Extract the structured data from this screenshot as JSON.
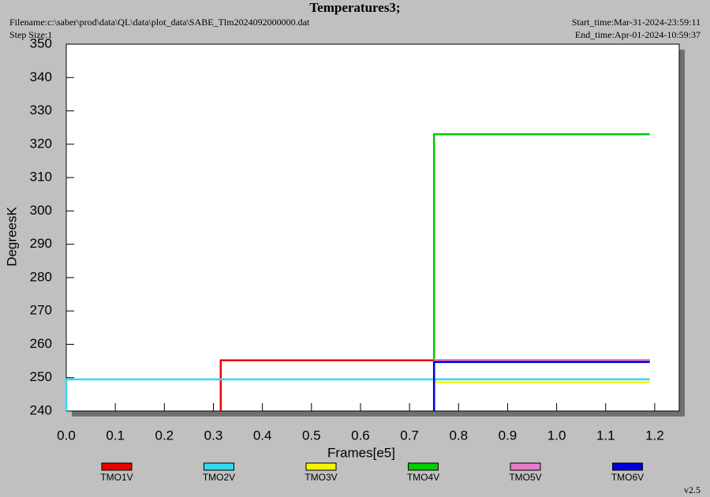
{
  "chart_data": {
    "type": "line",
    "title": "Temperatures3;",
    "filename": "Filename:c:\\saber\\prod\\data\\QL\\data\\plot_data\\SABE_Tlm2024092000000.dat",
    "step_size": "Step Size:1",
    "start_time": "Start_time:Mar-31-2024-23:59:11",
    "end_time": "End_time:Apr-01-2024-10:59:37",
    "version": "v2.5",
    "xlabel": "Frames[e5]",
    "ylabel": "DegreesK",
    "xlim": [
      0,
      1.25
    ],
    "ylim": [
      240,
      350
    ],
    "xticks": [
      {
        "value": 0,
        "label": "0.0"
      },
      0.1,
      0.2,
      0.3,
      0.4,
      0.5,
      0.6,
      0.7,
      0.8,
      0.9,
      {
        "value": 1,
        "label": "1.0"
      },
      1.1,
      1.2
    ],
    "yticks": [
      240,
      250,
      260,
      270,
      280,
      290,
      300,
      310,
      320,
      330,
      340,
      350
    ],
    "series": [
      {
        "name": "TMO1V",
        "color": "#ee0000",
        "x": [
          0.315,
          0.315,
          1.19
        ],
        "values": [
          240,
          255.2,
          255.2
        ]
      },
      {
        "name": "TMO2V",
        "color": "#33d8ee",
        "x": [
          0,
          0,
          1.19
        ],
        "values": [
          240,
          249.5,
          249.5
        ]
      },
      {
        "name": "TMO3V",
        "color": "#f5f500",
        "x": [
          0.75,
          1.19
        ],
        "values": [
          248.6,
          248.6
        ]
      },
      {
        "name": "TMO4V",
        "color": "#00cc00",
        "x": [
          0.75,
          0.75,
          1.19
        ],
        "values": [
          240,
          323,
          323
        ]
      },
      {
        "name": "TMO5V",
        "color": "#e87ac8",
        "x": [
          0.75,
          1.19
        ],
        "values": [
          255.3,
          255.3
        ]
      },
      {
        "name": "TMO6V",
        "color": "#0000dd",
        "x": [
          0.75,
          0.75,
          1.19
        ],
        "values": [
          240,
          254.7,
          254.7
        ]
      }
    ]
  }
}
